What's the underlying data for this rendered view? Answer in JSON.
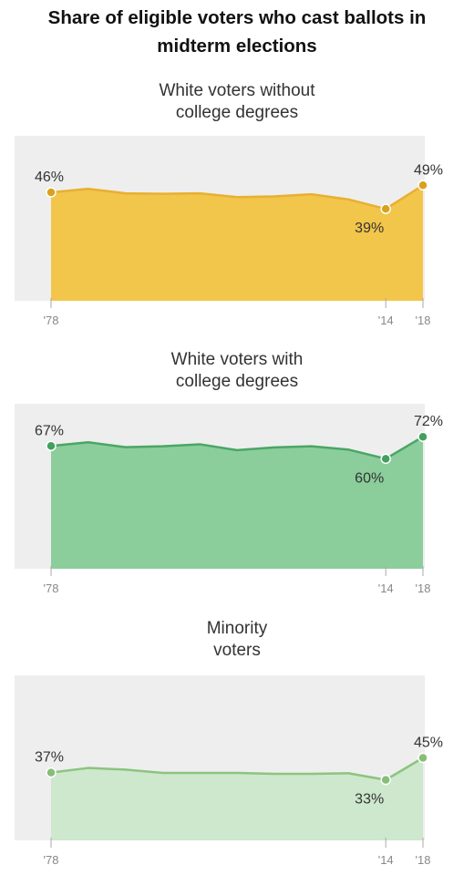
{
  "title": "Share of eligible voters who cast ballots in\nmidterm elections",
  "chart_data": [
    {
      "type": "area",
      "title": "White voters without\ncollege degrees",
      "color": "#f2c54b",
      "line_color": "#e8b030",
      "dot_color": "#d9a21c",
      "x": [
        1978,
        1982,
        1986,
        1990,
        1994,
        1998,
        2002,
        2006,
        2010,
        2014,
        2018
      ],
      "values": [
        46,
        47.5,
        45.6,
        45.4,
        45.6,
        44,
        44.3,
        45.2,
        43,
        39,
        49
      ],
      "labeled_points": [
        {
          "index": 0,
          "label": "46%",
          "position": "above"
        },
        {
          "index": 9,
          "label": "39%",
          "position": "below"
        },
        {
          "index": 10,
          "label": "49%",
          "position": "above"
        }
      ],
      "ticks": [
        {
          "x": 1978,
          "label": "'78"
        },
        {
          "x": 2014,
          "label": "'14"
        },
        {
          "x": 2018,
          "label": "'18"
        }
      ],
      "ylim": [
        0,
        70
      ]
    },
    {
      "type": "area",
      "title": "White voters with\ncollege degrees",
      "color": "#8bce9c",
      "line_color": "#4aa664",
      "dot_color": "#43a05f",
      "x": [
        1978,
        1982,
        1986,
        1990,
        1994,
        1998,
        2002,
        2006,
        2010,
        2014,
        2018
      ],
      "values": [
        67,
        69,
        66.3,
        66.8,
        67.9,
        64.7,
        66.2,
        66.8,
        65,
        60,
        72
      ],
      "labeled_points": [
        {
          "index": 0,
          "label": "67%",
          "position": "above"
        },
        {
          "index": 9,
          "label": "60%",
          "position": "below"
        },
        {
          "index": 10,
          "label": "72%",
          "position": "above"
        }
      ],
      "ticks": [
        {
          "x": 1978,
          "label": "'78"
        },
        {
          "x": 2014,
          "label": "'14"
        },
        {
          "x": 2018,
          "label": "'18"
        }
      ],
      "ylim": [
        0,
        90
      ]
    },
    {
      "type": "area",
      "title": "Minority\nvoters",
      "color": "#cde8cc",
      "line_color": "#8cc47f",
      "dot_color": "#86be78",
      "x": [
        1978,
        1982,
        1986,
        1990,
        1994,
        1998,
        2002,
        2006,
        2010,
        2014,
        2018
      ],
      "values": [
        37,
        39.5,
        38.6,
        36.8,
        36.8,
        36.8,
        36.3,
        36.3,
        36.6,
        33,
        45
      ],
      "labeled_points": [
        {
          "index": 0,
          "label": "37%",
          "position": "above"
        },
        {
          "index": 9,
          "label": "33%",
          "position": "below"
        },
        {
          "index": 10,
          "label": "45%",
          "position": "above"
        }
      ],
      "ticks": [
        {
          "x": 1978,
          "label": "'78"
        },
        {
          "x": 2014,
          "label": "'14"
        },
        {
          "x": 2018,
          "label": "'18"
        }
      ],
      "ylim": [
        0,
        90
      ]
    }
  ]
}
